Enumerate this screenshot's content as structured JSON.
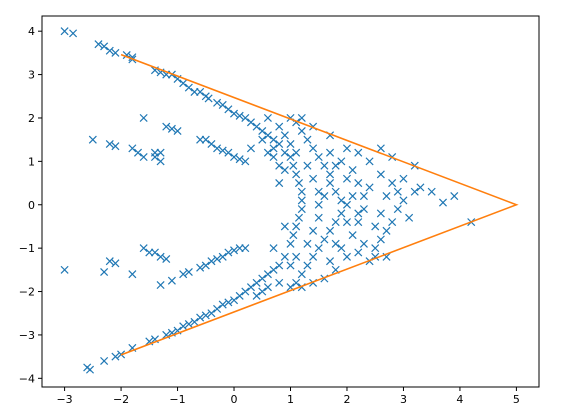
{
  "chart_data": {
    "type": "scatter",
    "title": "",
    "xlabel": "",
    "ylabel": "",
    "xlim": [
      -3.4,
      5.4
    ],
    "ylim": [
      -4.2,
      4.35
    ],
    "x_ticks": [
      -3,
      -2,
      -1,
      0,
      1,
      2,
      3,
      4,
      5
    ],
    "y_ticks": [
      -4,
      -3,
      -2,
      -1,
      0,
      1,
      2,
      3,
      4
    ],
    "x_tick_labels": [
      "−3",
      "−2",
      "−1",
      "0",
      "1",
      "2",
      "3",
      "4",
      "5"
    ],
    "y_tick_labels": [
      "−4",
      "−3",
      "−2",
      "−1",
      "0",
      "1",
      "2",
      "3",
      "4"
    ],
    "grid": false,
    "legend": "none",
    "series": [
      {
        "kind": "scatter",
        "marker": "x",
        "color": "#1f77b4",
        "points": [
          [
            -3.0,
            4.0
          ],
          [
            -2.85,
            3.95
          ],
          [
            -2.4,
            3.7
          ],
          [
            -2.3,
            3.65
          ],
          [
            -2.2,
            3.55
          ],
          [
            -2.1,
            3.5
          ],
          [
            -1.9,
            3.45
          ],
          [
            -1.8,
            3.4
          ],
          [
            -1.8,
            3.35
          ],
          [
            -1.4,
            3.1
          ],
          [
            -1.3,
            3.05
          ],
          [
            -1.2,
            3.0
          ],
          [
            -1.1,
            3.0
          ],
          [
            -1.0,
            2.9
          ],
          [
            -0.9,
            2.8
          ],
          [
            -0.8,
            2.7
          ],
          [
            -0.7,
            2.6
          ],
          [
            -0.6,
            2.6
          ],
          [
            -0.5,
            2.5
          ],
          [
            -0.45,
            2.45
          ],
          [
            -0.3,
            2.35
          ],
          [
            -0.2,
            2.3
          ],
          [
            -0.1,
            2.2
          ],
          [
            0.0,
            2.1
          ],
          [
            0.1,
            2.05
          ],
          [
            0.2,
            2.0
          ],
          [
            0.3,
            1.9
          ],
          [
            0.4,
            1.8
          ],
          [
            0.5,
            1.7
          ],
          [
            0.6,
            1.6
          ],
          [
            0.7,
            1.5
          ],
          [
            0.8,
            1.4
          ],
          [
            0.9,
            1.2
          ],
          [
            1.0,
            1.1
          ],
          [
            1.05,
            0.9
          ],
          [
            1.1,
            0.7
          ],
          [
            1.15,
            0.5
          ],
          [
            1.2,
            0.3
          ],
          [
            1.2,
            0.1
          ],
          [
            1.2,
            -0.1
          ],
          [
            1.15,
            -0.3
          ],
          [
            1.1,
            -0.5
          ],
          [
            1.05,
            -0.7
          ],
          [
            1.0,
            -0.9
          ],
          [
            0.9,
            -1.2
          ],
          [
            0.8,
            -1.4
          ],
          [
            0.7,
            -1.5
          ],
          [
            0.6,
            -1.6
          ],
          [
            0.5,
            -1.7
          ],
          [
            0.4,
            -1.8
          ],
          [
            0.3,
            -1.9
          ],
          [
            0.2,
            -2.0
          ],
          [
            0.1,
            -2.1
          ],
          [
            0.0,
            -2.2
          ],
          [
            -0.1,
            -2.25
          ],
          [
            -0.2,
            -2.3
          ],
          [
            -0.3,
            -2.4
          ],
          [
            -0.4,
            -2.5
          ],
          [
            -0.5,
            -2.55
          ],
          [
            -0.6,
            -2.6
          ],
          [
            -0.7,
            -2.7
          ],
          [
            -0.8,
            -2.75
          ],
          [
            -0.9,
            -2.8
          ],
          [
            -1.0,
            -2.9
          ],
          [
            -1.1,
            -2.95
          ],
          [
            -1.2,
            -3.0
          ],
          [
            -1.4,
            -3.1
          ],
          [
            -1.5,
            -3.15
          ],
          [
            -1.8,
            -3.3
          ],
          [
            -2.0,
            -3.45
          ],
          [
            -2.1,
            -3.5
          ],
          [
            -2.3,
            -3.6
          ],
          [
            -2.6,
            -3.75
          ],
          [
            -2.55,
            -3.8
          ],
          [
            -1.6,
            2.0
          ],
          [
            -1.2,
            1.8
          ],
          [
            -1.1,
            1.75
          ],
          [
            -1.0,
            1.7
          ],
          [
            -0.6,
            1.5
          ],
          [
            -0.5,
            1.5
          ],
          [
            -0.4,
            1.4
          ],
          [
            -0.3,
            1.3
          ],
          [
            -0.2,
            1.25
          ],
          [
            -0.1,
            1.2
          ],
          [
            0.0,
            1.1
          ],
          [
            0.1,
            1.05
          ],
          [
            0.2,
            1.0
          ],
          [
            -2.5,
            1.5
          ],
          [
            -2.2,
            1.4
          ],
          [
            -2.1,
            1.35
          ],
          [
            -1.8,
            1.3
          ],
          [
            -1.7,
            1.2
          ],
          [
            -1.6,
            1.1
          ],
          [
            -1.4,
            1.2
          ],
          [
            -1.3,
            1.2
          ],
          [
            -1.4,
            1.1
          ],
          [
            -1.3,
            1.0
          ],
          [
            -3.0,
            -1.5
          ],
          [
            -2.3,
            -1.55
          ],
          [
            -2.2,
            -1.3
          ],
          [
            -2.1,
            -1.35
          ],
          [
            -1.8,
            -1.6
          ],
          [
            -1.6,
            -1.0
          ],
          [
            -1.5,
            -1.1
          ],
          [
            -1.4,
            -1.1
          ],
          [
            -1.3,
            -1.2
          ],
          [
            -1.2,
            -1.25
          ],
          [
            -1.3,
            -1.85
          ],
          [
            -1.1,
            -1.75
          ],
          [
            -0.9,
            -1.6
          ],
          [
            -0.8,
            -1.55
          ],
          [
            -0.6,
            -1.45
          ],
          [
            -0.5,
            -1.4
          ],
          [
            -0.4,
            -1.3
          ],
          [
            -0.3,
            -1.25
          ],
          [
            -0.2,
            -1.2
          ],
          [
            -0.1,
            -1.1
          ],
          [
            0.0,
            -1.05
          ],
          [
            0.2,
            -1.0
          ],
          [
            0.1,
            -1.0
          ],
          [
            0.3,
            1.3
          ],
          [
            0.5,
            1.5
          ],
          [
            0.6,
            1.2
          ],
          [
            0.7,
            1.1
          ],
          [
            0.8,
            0.9
          ],
          [
            0.9,
            0.8
          ],
          [
            0.6,
            2.0
          ],
          [
            0.8,
            1.8
          ],
          [
            1.0,
            2.0
          ],
          [
            1.1,
            1.9
          ],
          [
            1.2,
            1.7
          ],
          [
            1.3,
            1.5
          ],
          [
            1.4,
            1.3
          ],
          [
            1.5,
            1.1
          ],
          [
            1.6,
            0.9
          ],
          [
            1.7,
            0.7
          ],
          [
            1.7,
            0.5
          ],
          [
            1.8,
            0.3
          ],
          [
            1.9,
            0.1
          ],
          [
            2.0,
            0.0
          ],
          [
            1.9,
            -0.2
          ],
          [
            1.8,
            -0.4
          ],
          [
            1.7,
            -0.6
          ],
          [
            1.6,
            -0.8
          ],
          [
            1.5,
            -1.0
          ],
          [
            1.4,
            -1.2
          ],
          [
            1.3,
            -1.4
          ],
          [
            1.2,
            -1.6
          ],
          [
            1.1,
            -1.8
          ],
          [
            1.0,
            -1.9
          ],
          [
            0.8,
            -1.8
          ],
          [
            0.6,
            -1.9
          ],
          [
            0.5,
            -2.0
          ],
          [
            0.4,
            -2.1
          ],
          [
            1.0,
            1.4
          ],
          [
            1.1,
            1.2
          ],
          [
            1.3,
            0.9
          ],
          [
            1.4,
            0.6
          ],
          [
            1.5,
            0.3
          ],
          [
            1.5,
            0.0
          ],
          [
            1.5,
            -0.3
          ],
          [
            1.4,
            -0.6
          ],
          [
            1.3,
            -0.9
          ],
          [
            1.1,
            -1.2
          ],
          [
            1.0,
            -1.4
          ],
          [
            1.7,
            1.2
          ],
          [
            1.9,
            1.0
          ],
          [
            2.1,
            0.8
          ],
          [
            2.2,
            0.5
          ],
          [
            2.3,
            0.2
          ],
          [
            2.3,
            -0.1
          ],
          [
            2.2,
            -0.4
          ],
          [
            2.1,
            -0.7
          ],
          [
            1.9,
            -1.0
          ],
          [
            1.7,
            -1.3
          ],
          [
            2.0,
            1.3
          ],
          [
            2.4,
            1.0
          ],
          [
            2.6,
            0.7
          ],
          [
            2.8,
            0.5
          ],
          [
            2.9,
            0.3
          ],
          [
            3.0,
            0.1
          ],
          [
            2.7,
            0.2
          ],
          [
            2.6,
            -0.2
          ],
          [
            2.5,
            -0.5
          ],
          [
            2.7,
            -0.6
          ],
          [
            2.6,
            -0.8
          ],
          [
            2.5,
            -1.0
          ],
          [
            2.2,
            -1.1
          ],
          [
            2.0,
            -1.2
          ],
          [
            1.8,
            -1.5
          ],
          [
            2.6,
            1.3
          ],
          [
            2.8,
            1.1
          ],
          [
            3.0,
            0.6
          ],
          [
            3.3,
            0.4
          ],
          [
            3.5,
            0.3
          ],
          [
            3.7,
            0.05
          ],
          [
            3.9,
            0.2
          ],
          [
            3.1,
            -0.3
          ],
          [
            2.8,
            -0.4
          ],
          [
            2.5,
            -1.2
          ],
          [
            2.4,
            -1.3
          ],
          [
            2.7,
            -1.2
          ],
          [
            1.2,
            2.0
          ],
          [
            1.4,
            1.8
          ],
          [
            1.7,
            1.6
          ],
          [
            0.9,
            1.6
          ],
          [
            1.6,
            -1.7
          ],
          [
            1.4,
            -1.8
          ],
          [
            1.2,
            -1.9
          ],
          [
            4.2,
            -0.4
          ],
          [
            3.2,
            0.9
          ],
          [
            2.2,
            1.2
          ],
          [
            1.8,
            0.9
          ],
          [
            2.0,
            0.6
          ],
          [
            2.1,
            0.2
          ],
          [
            2.2,
            -0.2
          ],
          [
            1.8,
            -0.9
          ],
          [
            2.3,
            -0.9
          ],
          [
            2.9,
            -0.1
          ],
          [
            3.2,
            0.3
          ],
          [
            2.4,
            0.4
          ],
          [
            2.0,
            -0.4
          ],
          [
            1.6,
            0.2
          ],
          [
            0.8,
            0.5
          ],
          [
            0.9,
            -0.5
          ],
          [
            0.7,
            -1.0
          ],
          [
            0.7,
            1.3
          ]
        ]
      },
      {
        "kind": "line",
        "color": "#ff7f0e",
        "points": [
          [
            -2.0,
            3.46
          ],
          [
            5.0,
            0.0
          ],
          [
            -2.0,
            -3.46
          ]
        ]
      }
    ]
  }
}
